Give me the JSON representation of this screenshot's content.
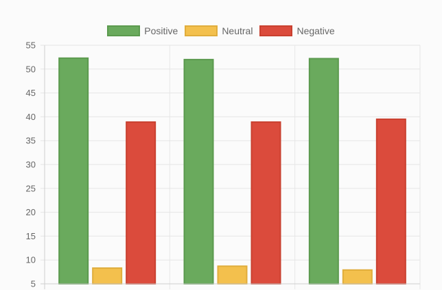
{
  "colors": {
    "background": "#fbfbfb",
    "grid": "#e6e6e6",
    "axis": "#cfcfcf",
    "tick_text": "#666666"
  },
  "legend": {
    "placement": "top-center",
    "items": [
      {
        "label": "Positive",
        "fill": "#6aaa5d",
        "stroke": "#5b9a4e"
      },
      {
        "label": "Neutral",
        "fill": "#f3c04d",
        "stroke": "#e0ad3c"
      },
      {
        "label": "Negative",
        "fill": "#db4b3c",
        "stroke": "#c9402f"
      }
    ]
  },
  "chart_data": {
    "type": "bar",
    "title": "",
    "xlabel": "",
    "ylabel": "",
    "categories": [
      "",
      "",
      ""
    ],
    "series": [
      {
        "name": "Positive",
        "color": "#6aaa5d",
        "border": "#5b9a4e",
        "values": [
          52.3,
          52.0,
          52.2
        ]
      },
      {
        "name": "Neutral",
        "color": "#f3c04d",
        "border": "#e0ad3c",
        "values": [
          8.3,
          8.7,
          7.9
        ]
      },
      {
        "name": "Negative",
        "color": "#db4b3c",
        "border": "#c9402f",
        "values": [
          38.9,
          38.9,
          39.5
        ]
      }
    ],
    "ylim": [
      5,
      55
    ],
    "yticks": [
      "55",
      "50",
      "45",
      "40",
      "35",
      "30",
      "25",
      "20",
      "15",
      "10",
      "5"
    ],
    "grid": true,
    "legend": "top-center"
  }
}
